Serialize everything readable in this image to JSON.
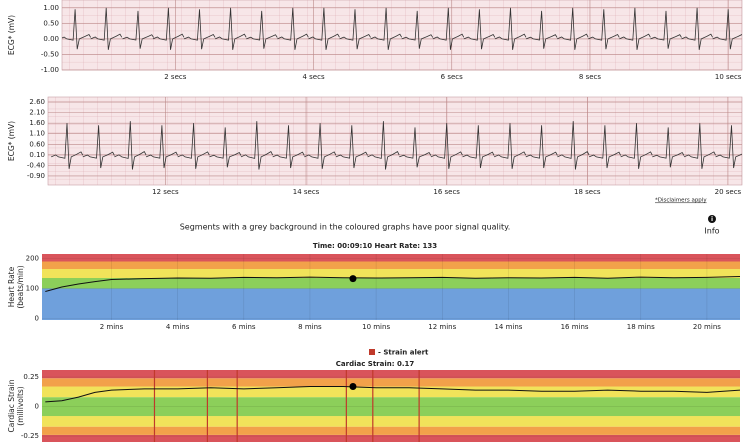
{
  "ecg1": {
    "ylabel": "ECG* (mV)",
    "xlim": [
      0.36,
      10.2
    ],
    "ylim": [
      -1.0,
      1.25
    ],
    "yticks": [
      {
        "value": 1,
        "label": "1.00"
      },
      {
        "value": 0.5,
        "label": "0.50"
      },
      {
        "value": 0,
        "label": "0.00"
      },
      {
        "value": -0.5,
        "label": "-0.50"
      },
      {
        "value": -1,
        "label": "-1.00"
      }
    ],
    "xticks": [
      {
        "value": 2,
        "label": "2 secs"
      },
      {
        "value": 4,
        "label": "4 secs"
      },
      {
        "value": 6,
        "label": "6 secs"
      },
      {
        "value": 8,
        "label": "8 secs"
      },
      {
        "value": 10,
        "label": "10 secs"
      }
    ],
    "beat_times": [
      0.55,
      1.0,
      1.46,
      1.9,
      2.35,
      2.8,
      3.25,
      3.7,
      4.15,
      4.6,
      5.05,
      5.5,
      5.95,
      6.4,
      6.85,
      7.3,
      7.75,
      8.2,
      8.65,
      9.1,
      9.55,
      10.0
    ],
    "r_amplitudes": [
      0.95,
      1.0,
      0.9,
      1.0,
      0.95,
      1.0,
      0.9,
      1.0,
      1.0,
      0.95,
      1.0,
      0.9,
      1.0,
      0.95,
      1.0,
      0.9,
      1.0,
      0.95,
      1.0,
      0.9,
      1.0,
      0.95
    ],
    "color": "#333333"
  },
  "ecg2": {
    "ylabel": "ECG* (mV)",
    "xlim": [
      10.33,
      20.2
    ],
    "ylim": [
      -1.33,
      2.84
    ],
    "yticks": [
      {
        "value": 2.6,
        "label": "2.60"
      },
      {
        "value": 2.1,
        "label": "2.10"
      },
      {
        "value": 1.6,
        "label": "1.60"
      },
      {
        "value": 1.1,
        "label": "1.10"
      },
      {
        "value": 0.6,
        "label": "0.60"
      },
      {
        "value": 0.1,
        "label": "0.10"
      },
      {
        "value": -0.4,
        "label": "-0.40"
      },
      {
        "value": -0.9,
        "label": "-0.90"
      }
    ],
    "xticks": [
      {
        "value": 12,
        "label": "12 secs"
      },
      {
        "value": 14,
        "label": "14 secs"
      },
      {
        "value": 16,
        "label": "16 secs"
      },
      {
        "value": 18,
        "label": "18 secs"
      },
      {
        "value": 20,
        "label": "20 secs"
      }
    ],
    "beat_times": [
      10.6,
      11.05,
      11.5,
      11.95,
      12.4,
      12.85,
      13.3,
      13.75,
      14.2,
      14.65,
      15.1,
      15.55,
      16.0,
      16.45,
      16.9,
      17.35,
      17.8,
      18.25,
      18.7,
      19.15,
      19.6,
      20.05
    ],
    "r_amplitudes": [
      1.6,
      1.5,
      1.7,
      1.5,
      1.6,
      1.4,
      1.7,
      1.5,
      1.6,
      1.5,
      1.7,
      1.4,
      1.6,
      1.5,
      1.6,
      1.5,
      1.7,
      1.5,
      1.6,
      1.4,
      1.6,
      1.5
    ],
    "color": "#333333"
  },
  "disclaimer": "*Disclaimers apply",
  "signal_note": "Segments with a grey background in the coloured graphs have poor signal quality.",
  "info": "Info",
  "heart_rate": {
    "title": "Time: 00:09:10  Heart Rate: 133",
    "ylabel": [
      "Heart Rate",
      "(beats/min)"
    ],
    "xlim": [
      -0.1,
      21
    ],
    "ylim": [
      -5,
      215
    ],
    "yticks": [
      0,
      100,
      200
    ],
    "xticks": [
      {
        "value": 2,
        "label": "2 mins"
      },
      {
        "value": 4,
        "label": "4 mins"
      },
      {
        "value": 6,
        "label": "6 mins"
      },
      {
        "value": 8,
        "label": "8 mins"
      },
      {
        "value": 10,
        "label": "10 mins"
      },
      {
        "value": 12,
        "label": "12 mins"
      },
      {
        "value": 14,
        "label": "14 mins"
      },
      {
        "value": 16,
        "label": "16 mins"
      },
      {
        "value": 18,
        "label": "18 mins"
      },
      {
        "value": 20,
        "label": "20 mins"
      }
    ],
    "bands": [
      {
        "from": -5,
        "to": 100,
        "color": "#6fa0dc"
      },
      {
        "from": 100,
        "to": 135,
        "color": "#8ccf5a"
      },
      {
        "from": 135,
        "to": 165,
        "color": "#f1e35a"
      },
      {
        "from": 165,
        "to": 190,
        "color": "#f2a14a"
      },
      {
        "from": 190,
        "to": 215,
        "color": "#d9545b"
      }
    ],
    "x": [
      0,
      0.5,
      1,
      1.5,
      2,
      3,
      4,
      5,
      6,
      7,
      8,
      9,
      10,
      11,
      12,
      13,
      14,
      15,
      16,
      17,
      18,
      19,
      20,
      21
    ],
    "values": [
      90,
      105,
      115,
      123,
      130,
      133,
      135,
      134,
      137,
      136,
      138,
      136,
      135,
      136,
      137,
      134,
      136,
      135,
      137,
      134,
      138,
      136,
      137,
      140
    ],
    "marker": {
      "x": 9.3,
      "y": 133
    },
    "color": "#111111"
  },
  "strain": {
    "legend": "- Strain alert",
    "legend_color": "#c0392b",
    "title": "Cardiac Strain: 0.17",
    "ylabel": [
      "Cardiac Strain",
      "(millivolts)"
    ],
    "xlim": [
      -0.1,
      21
    ],
    "ylim": [
      -0.3,
      0.31
    ],
    "yticks": [
      0.25,
      0,
      -0.25
    ],
    "bands": [
      {
        "from": -0.3,
        "to": -0.24,
        "color": "#d9545b"
      },
      {
        "from": -0.24,
        "to": -0.17,
        "color": "#f2a14a"
      },
      {
        "from": -0.17,
        "to": -0.08,
        "color": "#f1e35a"
      },
      {
        "from": -0.08,
        "to": 0.08,
        "color": "#8ccf5a"
      },
      {
        "from": 0.08,
        "to": 0.17,
        "color": "#f1e35a"
      },
      {
        "from": 0.17,
        "to": 0.24,
        "color": "#f2a14a"
      },
      {
        "from": 0.24,
        "to": 0.31,
        "color": "#d9545b"
      }
    ],
    "alerts": [
      3.3,
      4.9,
      5.8,
      9.1,
      9.9,
      11.3
    ],
    "x": [
      0,
      0.5,
      1,
      1.5,
      2,
      3,
      4,
      5,
      6,
      7,
      8,
      9,
      10,
      11,
      12,
      13,
      14,
      15,
      16,
      17,
      18,
      19,
      20,
      21
    ],
    "values": [
      0.04,
      0.05,
      0.08,
      0.12,
      0.14,
      0.15,
      0.15,
      0.16,
      0.15,
      0.16,
      0.17,
      0.17,
      0.16,
      0.16,
      0.15,
      0.14,
      0.14,
      0.13,
      0.13,
      0.14,
      0.13,
      0.13,
      0.12,
      0.14
    ],
    "marker": {
      "x": 9.3,
      "y": 0.17
    },
    "color": "#111111"
  }
}
